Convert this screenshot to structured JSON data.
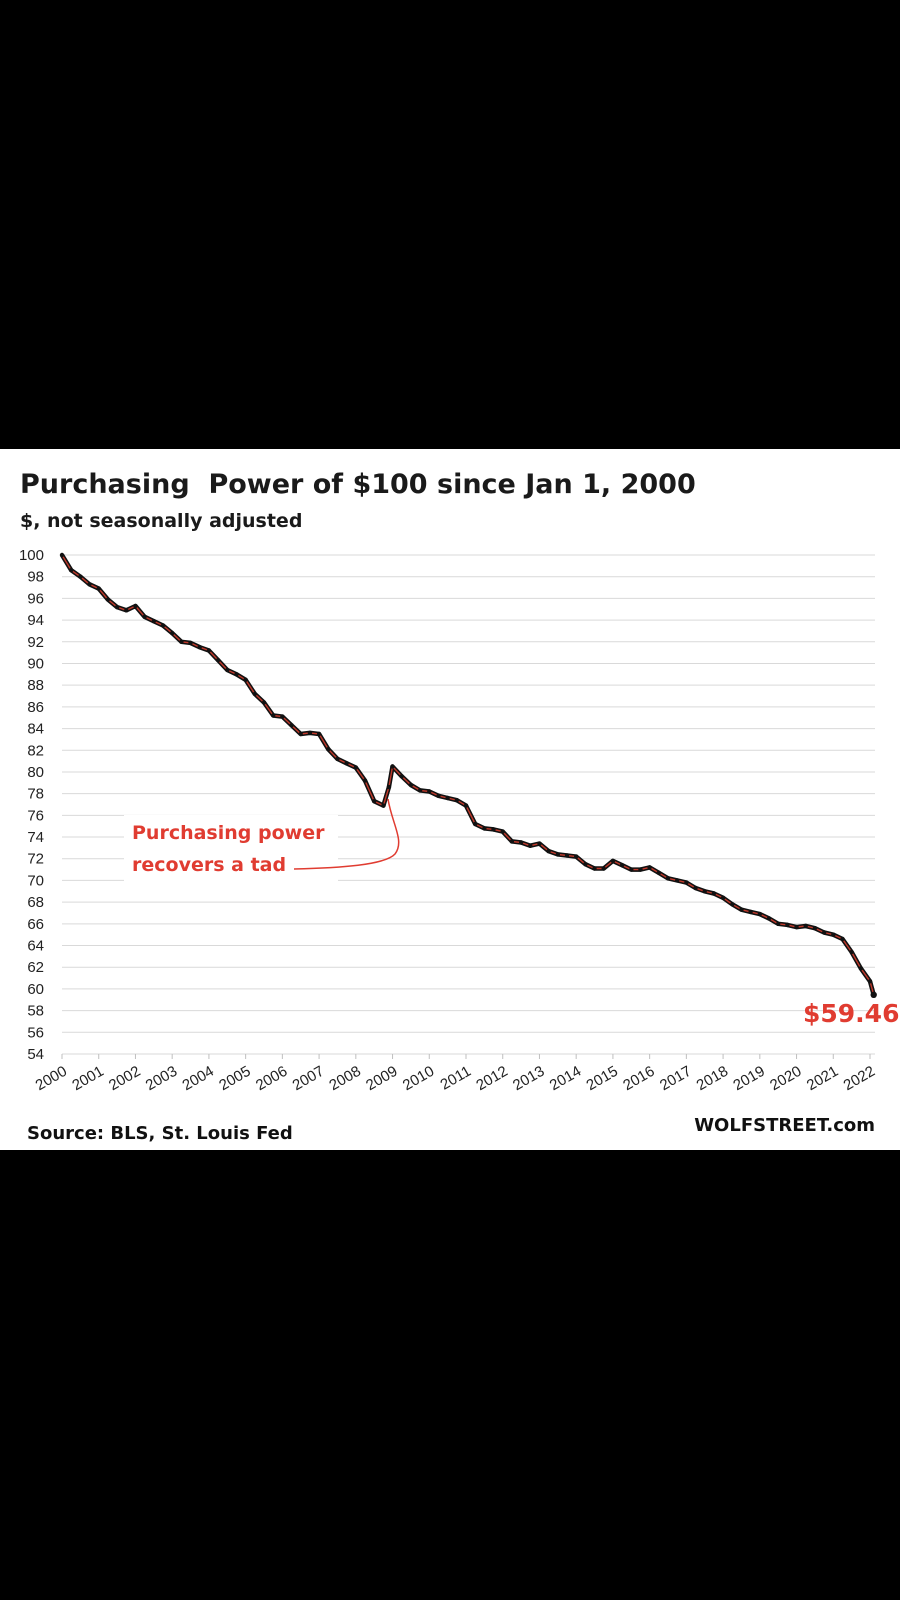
{
  "chart_data": {
    "type": "line",
    "title": "Purchasing  Power of $100 since Jan 1, 2000",
    "subtitle": "$, not seasonally adjusted",
    "xlabel": "",
    "ylabel": "",
    "ylim": [
      54,
      100
    ],
    "y_ticks": [
      100,
      98,
      96,
      94,
      92,
      90,
      88,
      86,
      84,
      82,
      80,
      78,
      76,
      74,
      72,
      70,
      68,
      66,
      64,
      62,
      60,
      58,
      56,
      54
    ],
    "x_ticks": [
      "2000",
      "2001",
      "2002",
      "2003",
      "2004",
      "2005",
      "2006",
      "2007",
      "2008",
      "2009",
      "2010",
      "2011",
      "2012",
      "2013",
      "2014",
      "2015",
      "2016",
      "2017",
      "2018",
      "2019",
      "2020",
      "2021",
      "2022"
    ],
    "grid": "horizontal",
    "series": [
      {
        "color": "#c0392b",
        "marker_color": "#111111",
        "x": [
          2000.0,
          2000.25,
          2000.5,
          2000.75,
          2001.0,
          2001.25,
          2001.5,
          2001.75,
          2002.0,
          2002.25,
          2002.5,
          2002.75,
          2003.0,
          2003.25,
          2003.5,
          2003.75,
          2004.0,
          2004.25,
          2004.5,
          2004.75,
          2005.0,
          2005.25,
          2005.5,
          2005.75,
          2006.0,
          2006.25,
          2006.5,
          2006.75,
          2007.0,
          2007.25,
          2007.5,
          2007.75,
          2008.0,
          2008.25,
          2008.5,
          2008.75,
          2008.9,
          2009.0,
          2009.25,
          2009.5,
          2009.75,
          2010.0,
          2010.25,
          2010.5,
          2010.75,
          2011.0,
          2011.25,
          2011.5,
          2011.75,
          2012.0,
          2012.25,
          2012.5,
          2012.75,
          2013.0,
          2013.25,
          2013.5,
          2013.75,
          2014.0,
          2014.25,
          2014.5,
          2014.75,
          2015.0,
          2015.25,
          2015.5,
          2015.75,
          2016.0,
          2016.25,
          2016.5,
          2016.75,
          2017.0,
          2017.25,
          2017.5,
          2017.75,
          2018.0,
          2018.25,
          2018.5,
          2018.75,
          2019.0,
          2019.25,
          2019.5,
          2019.75,
          2020.0,
          2020.25,
          2020.5,
          2020.75,
          2021.0,
          2021.25,
          2021.5,
          2021.75,
          2022.0,
          2022.1
        ],
        "values": [
          100.0,
          98.6,
          98.0,
          97.3,
          96.9,
          95.9,
          95.2,
          94.9,
          95.3,
          94.3,
          93.9,
          93.5,
          92.8,
          92.0,
          91.9,
          91.5,
          91.2,
          90.3,
          89.4,
          89.0,
          88.5,
          87.2,
          86.4,
          85.2,
          85.1,
          84.3,
          83.5,
          83.6,
          83.5,
          82.1,
          81.2,
          80.8,
          80.4,
          79.2,
          77.3,
          76.9,
          78.6,
          80.5,
          79.6,
          78.8,
          78.3,
          78.2,
          77.8,
          77.6,
          77.4,
          76.9,
          75.2,
          74.8,
          74.7,
          74.5,
          73.6,
          73.5,
          73.2,
          73.4,
          72.7,
          72.4,
          72.3,
          72.2,
          71.5,
          71.1,
          71.1,
          71.8,
          71.4,
          71.0,
          71.0,
          71.2,
          70.7,
          70.2,
          70.0,
          69.8,
          69.3,
          69.0,
          68.8,
          68.4,
          67.8,
          67.3,
          67.1,
          66.9,
          66.5,
          66.0,
          65.9,
          65.7,
          65.8,
          65.6,
          65.2,
          65.0,
          64.6,
          63.4,
          61.9,
          60.7,
          59.46
        ]
      }
    ],
    "annotation": "Purchasing power recovers a tad",
    "annotation_lines": [
      "Purchasing power",
      "recovers a tad"
    ],
    "annotation_color": "#e03c31",
    "last_value_label": "$59.46",
    "last_value_color": "#e03c31"
  },
  "footer": {
    "source": "Source: BLS, St. Louis Fed",
    "brand": "WOLFSTREET.com"
  }
}
